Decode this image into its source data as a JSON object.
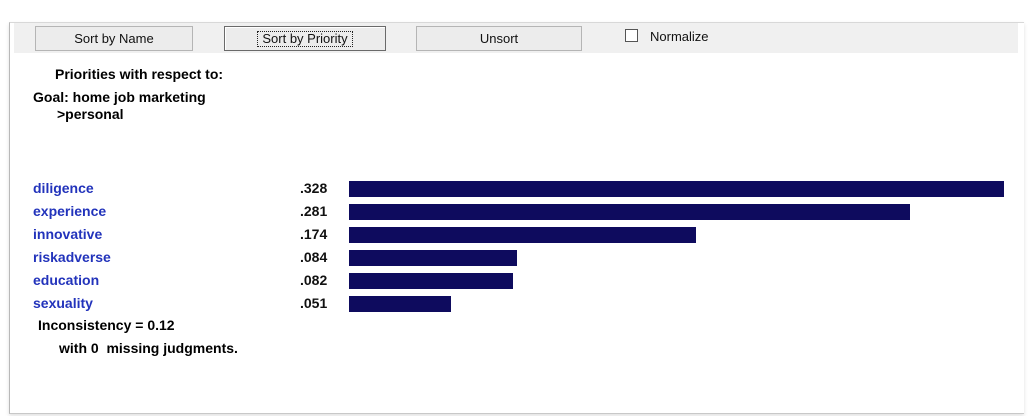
{
  "toolbar": {
    "sort_by_name": "Sort by Name",
    "sort_by_priority": "Sort by Priority",
    "unsort": "Unsort",
    "normalize_label": "Normalize",
    "normalize_checked": false
  },
  "header": {
    "title": "Priorities with respect to:",
    "goal": "Goal: home job marketing",
    "path": ">personal"
  },
  "chart_data": {
    "type": "bar",
    "orientation": "horizontal",
    "categories": [
      "diligence",
      "experience",
      "innovative",
      "riskadverse",
      "education",
      "sexuality"
    ],
    "values": [
      0.328,
      0.281,
      0.174,
      0.084,
      0.082,
      0.051
    ],
    "value_labels": [
      ".328",
      ".281",
      ".174",
      ".084",
      ".082",
      ".051"
    ],
    "bar_color": "#0e0b5e",
    "label_color": "#2233bb"
  },
  "footer": {
    "inconsistency": "Inconsistency = 0.12",
    "missing": "with 0  missing judgments."
  }
}
